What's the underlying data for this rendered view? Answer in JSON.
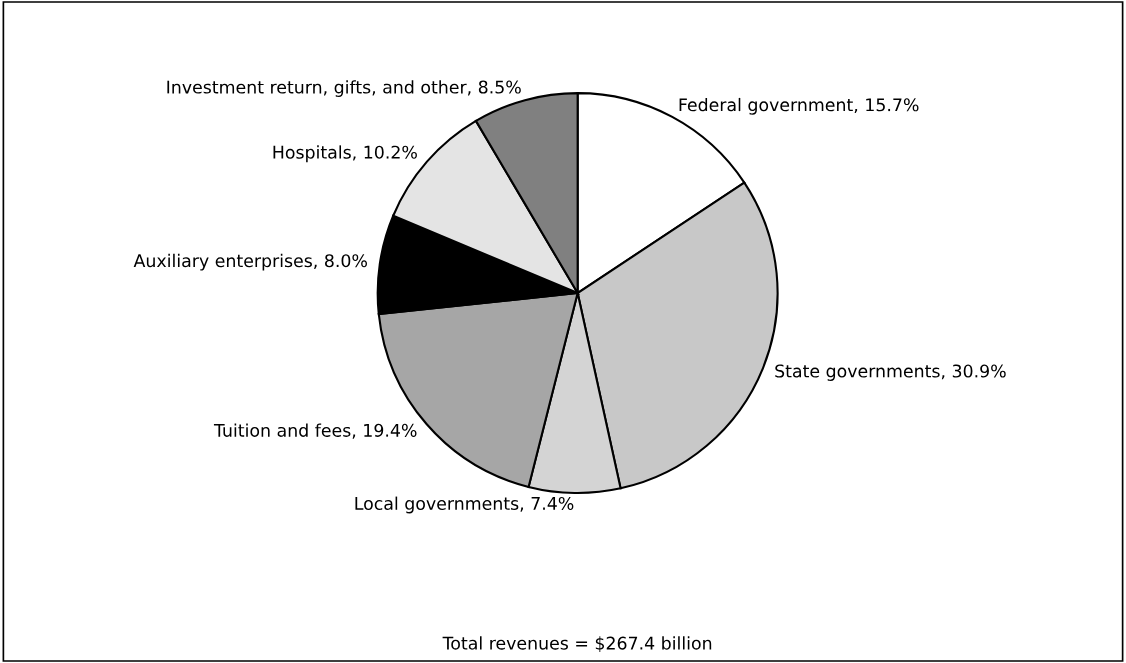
{
  "chart_data": {
    "type": "pie",
    "categories": [
      "Federal government",
      "State governments",
      "Local governments",
      "Tuition and fees",
      "Auxiliary enterprises",
      "Hospitals",
      "Investment return, gifts, and other"
    ],
    "values": [
      15.7,
      30.9,
      7.4,
      19.4,
      8.0,
      10.2,
      8.5
    ],
    "value_labels": [
      "15.7%",
      "30.9%",
      "7.4%",
      "19.4%",
      "8.0%",
      "10.2%",
      "8.5%"
    ],
    "colors": [
      "#ffffff",
      "#c8c8c8",
      "#d4d4d4",
      "#a6a6a6",
      "#000000",
      "#e4e4e4",
      "#808080"
    ],
    "annotations": [
      "Total revenues = $267.4 billion"
    ],
    "legend": false
  }
}
